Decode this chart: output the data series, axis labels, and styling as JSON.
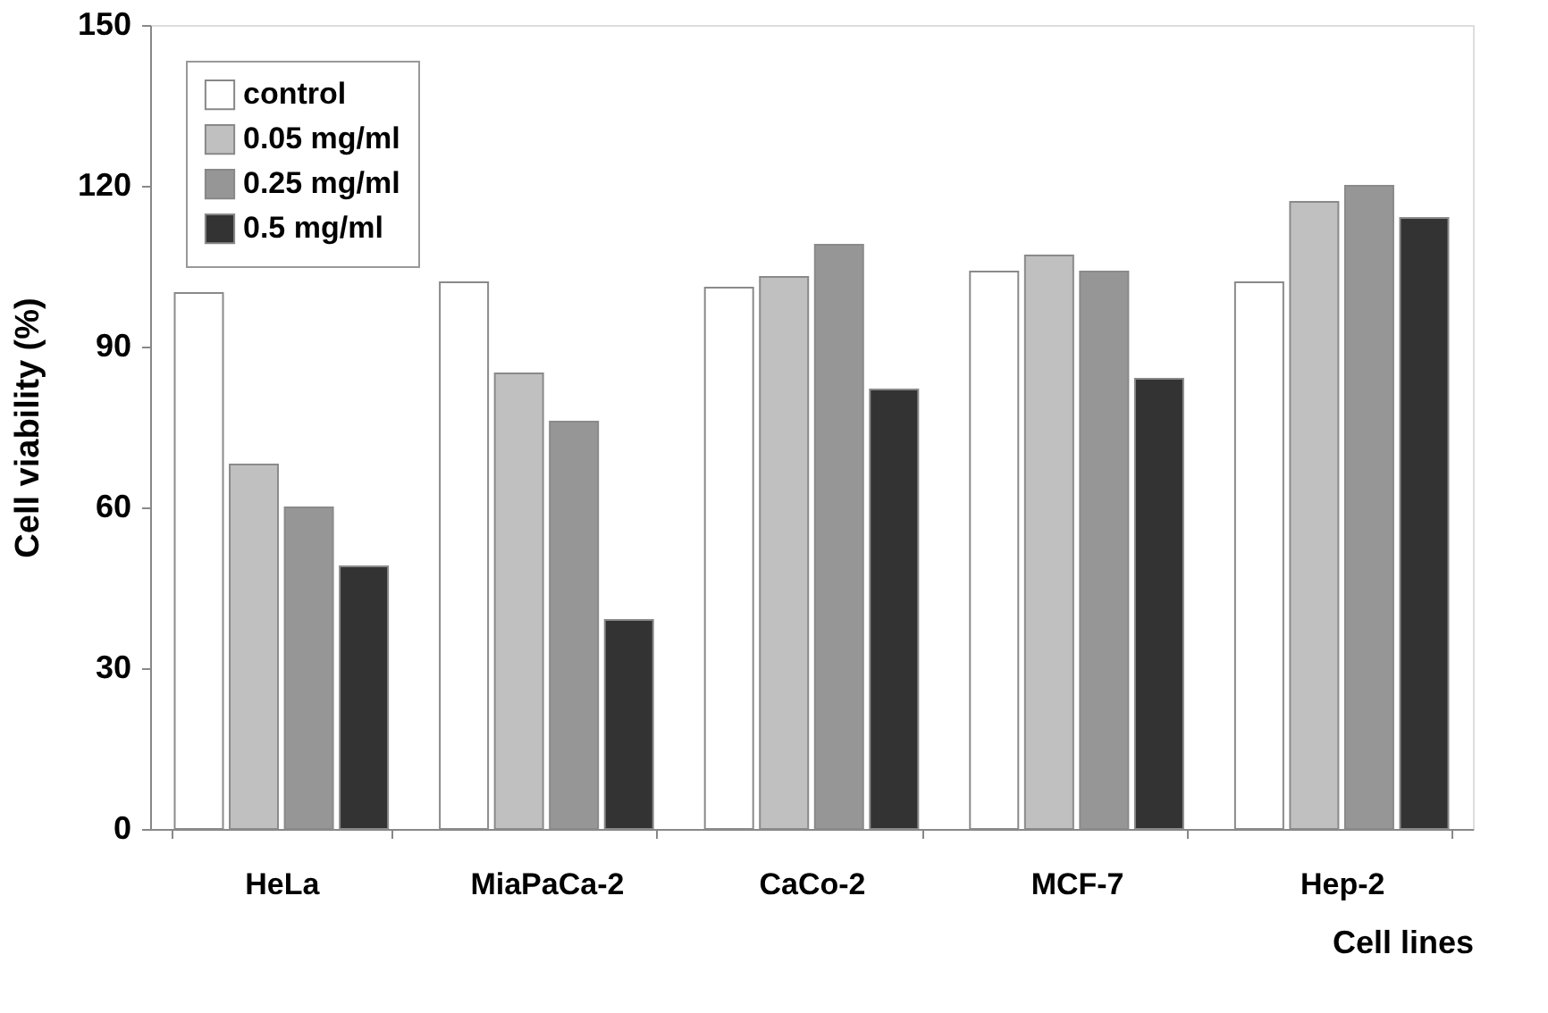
{
  "chart_data": {
    "type": "bar",
    "xlabel": "Cell lines",
    "ylabel": "Cell viability (%)",
    "categories": [
      "HeLa",
      "MiaPaCa-2",
      "CaCo-2",
      "MCF-7",
      "Hep-2"
    ],
    "series": [
      {
        "name": "control",
        "color": "#ffffff",
        "values": [
          100,
          102,
          101,
          104,
          102
        ]
      },
      {
        "name": "0.05 mg/ml",
        "color": "#c0c0c0",
        "values": [
          68,
          85,
          103,
          107,
          117
        ]
      },
      {
        "name": "0.25 mg/ml",
        "color": "#969696",
        "values": [
          60,
          76,
          109,
          104,
          120
        ]
      },
      {
        "name": "0.5 mg/ml",
        "color": "#333333",
        "values": [
          49,
          39,
          82,
          84,
          114
        ]
      }
    ],
    "ylim": [
      0,
      150
    ],
    "yticks": [
      0,
      30,
      60,
      90,
      120,
      150
    ],
    "grid": false,
    "legend": "top left"
  }
}
